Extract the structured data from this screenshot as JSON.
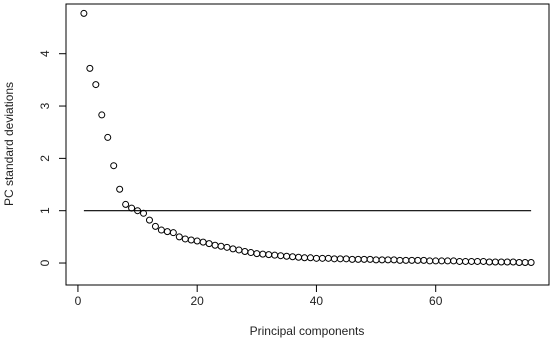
{
  "chart_data": {
    "type": "scatter",
    "x_label": "Principal components",
    "y_label": "PC standard deviations",
    "x": [
      1,
      2,
      3,
      4,
      5,
      6,
      7,
      8,
      9,
      10,
      11,
      12,
      13,
      14,
      15,
      16,
      17,
      18,
      19,
      20,
      21,
      22,
      23,
      24,
      25,
      26,
      27,
      28,
      29,
      30,
      31,
      32,
      33,
      34,
      35,
      36,
      37,
      38,
      39,
      40,
      41,
      42,
      43,
      44,
      45,
      46,
      47,
      48,
      49,
      50,
      51,
      52,
      53,
      54,
      55,
      56,
      57,
      58,
      59,
      60,
      61,
      62,
      63,
      64,
      65,
      66,
      67,
      68,
      69,
      70,
      71,
      72,
      73,
      74,
      75,
      76
    ],
    "series": [
      {
        "color": "#000000",
        "values": [
          4.77,
          3.72,
          3.41,
          2.83,
          2.4,
          1.86,
          1.41,
          1.12,
          1.05,
          1.0,
          0.95,
          0.82,
          0.7,
          0.63,
          0.6,
          0.58,
          0.5,
          0.46,
          0.44,
          0.42,
          0.4,
          0.37,
          0.34,
          0.32,
          0.3,
          0.27,
          0.25,
          0.22,
          0.2,
          0.18,
          0.17,
          0.16,
          0.15,
          0.14,
          0.13,
          0.12,
          0.11,
          0.1,
          0.1,
          0.09,
          0.09,
          0.09,
          0.08,
          0.08,
          0.08,
          0.07,
          0.07,
          0.07,
          0.07,
          0.06,
          0.06,
          0.06,
          0.06,
          0.05,
          0.05,
          0.05,
          0.05,
          0.05,
          0.04,
          0.04,
          0.04,
          0.04,
          0.04,
          0.03,
          0.03,
          0.03,
          0.03,
          0.03,
          0.02,
          0.02,
          0.02,
          0.02,
          0.02,
          0.01,
          0.01,
          0.01
        ]
      }
    ],
    "hline": {
      "y": 1,
      "x": [
        1,
        76
      ]
    },
    "xlim": [
      -2,
      79
    ],
    "ylim": [
      -0.42,
      4.95
    ],
    "xticks": [
      0,
      20,
      40,
      60
    ],
    "yticks": [
      0,
      1,
      2,
      3,
      4
    ]
  }
}
